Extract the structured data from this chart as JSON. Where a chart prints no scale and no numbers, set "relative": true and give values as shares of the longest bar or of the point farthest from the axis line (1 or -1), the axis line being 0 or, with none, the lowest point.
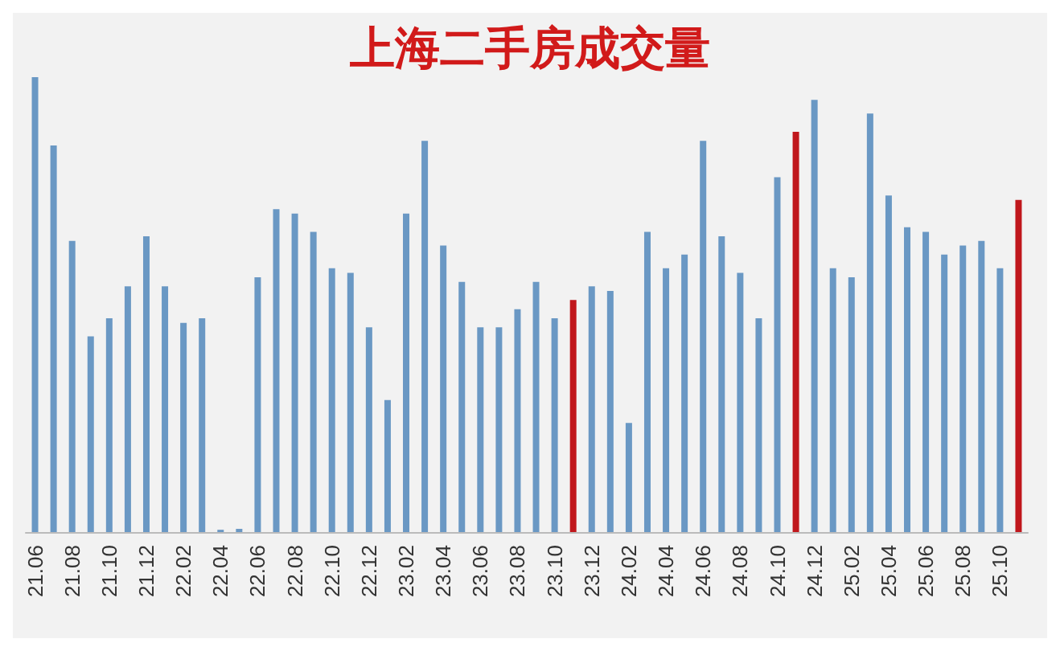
{
  "chart_data": {
    "type": "bar",
    "title": "上海二手房成交量",
    "relative": true,
    "categories": [
      "21.06",
      null,
      "21.08",
      null,
      "21.10",
      null,
      "21.12",
      null,
      "22.02",
      null,
      "22.04",
      null,
      "22.06",
      null,
      "22.08",
      null,
      "22.10",
      null,
      "22.12",
      null,
      "23.02",
      null,
      "23.04",
      null,
      "23.06",
      null,
      "23.08",
      null,
      "23.10",
      null,
      "23.12",
      null,
      "24.02",
      null,
      "24.04",
      null,
      "24.06",
      null,
      "24.08",
      null,
      "24.10",
      null,
      "24.12",
      null,
      "25.02",
      null,
      "25.04",
      null,
      "25.06",
      null,
      "25.08",
      null,
      "25.10",
      null
    ],
    "values": [
      1.0,
      0.85,
      0.64,
      0.43,
      0.47,
      0.54,
      0.65,
      0.54,
      0.46,
      0.47,
      0.005,
      0.007,
      0.56,
      0.71,
      0.7,
      0.66,
      0.58,
      0.57,
      0.45,
      0.29,
      0.7,
      0.86,
      0.63,
      0.55,
      0.45,
      0.45,
      0.49,
      0.55,
      0.47,
      0.51,
      0.54,
      0.53,
      0.24,
      0.66,
      0.58,
      0.61,
      0.86,
      0.65,
      0.57,
      0.47,
      0.78,
      0.88,
      0.95,
      0.58,
      0.56,
      0.92,
      0.74,
      0.67,
      0.66,
      0.61,
      0.63,
      0.64,
      0.58,
      0.73
    ],
    "colors": [
      "#6a98c4",
      "#6a98c4",
      "#6a98c4",
      "#6a98c4",
      "#6a98c4",
      "#6a98c4",
      "#6a98c4",
      "#6a98c4",
      "#6a98c4",
      "#6a98c4",
      "#6a98c4",
      "#6a98c4",
      "#6a98c4",
      "#6a98c4",
      "#6a98c4",
      "#6a98c4",
      "#6a98c4",
      "#6a98c4",
      "#6a98c4",
      "#6a98c4",
      "#6a98c4",
      "#6a98c4",
      "#6a98c4",
      "#6a98c4",
      "#6a98c4",
      "#6a98c4",
      "#6a98c4",
      "#6a98c4",
      "#6a98c4",
      "#c0171c",
      "#6a98c4",
      "#6a98c4",
      "#6a98c4",
      "#6a98c4",
      "#6a98c4",
      "#6a98c4",
      "#6a98c4",
      "#6a98c4",
      "#6a98c4",
      "#6a98c4",
      "#6a98c4",
      "#c0171c",
      "#6a98c4",
      "#6a98c4",
      "#6a98c4",
      "#6a98c4",
      "#6a98c4",
      "#6a98c4",
      "#6a98c4",
      "#6a98c4",
      "#6a98c4",
      "#6a98c4",
      "#6a98c4",
      "#c0171c"
    ]
  }
}
